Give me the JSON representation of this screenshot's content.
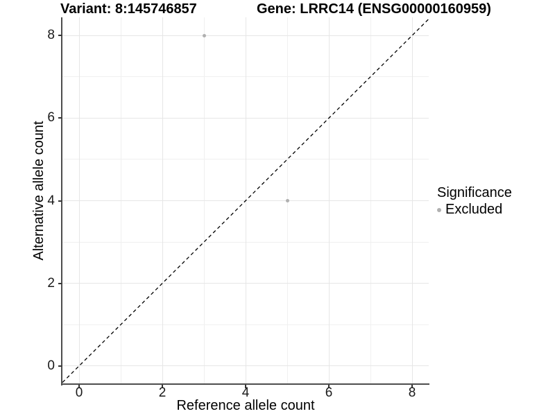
{
  "chart_data": {
    "type": "scatter",
    "title_left": "Variant: 8:145746857",
    "title_right": "Gene: LRRC14 (ENSG00000160959)",
    "xlabel": "Reference allele count",
    "ylabel": "Alternative allele count",
    "xlim": [
      -0.4,
      8.4
    ],
    "ylim": [
      -0.44,
      8.44
    ],
    "x_major_ticks": [
      0,
      2,
      4,
      6,
      8
    ],
    "y_major_ticks": [
      0,
      2,
      4,
      6,
      8
    ],
    "x_minor_gridlines": [
      1,
      3,
      5,
      7
    ],
    "y_minor_gridlines": [
      1,
      3,
      5,
      7
    ],
    "grid": "on",
    "identity_line": {
      "style": "dashed",
      "color": "#000000",
      "from": [
        -0.4,
        -0.4
      ],
      "to": [
        8.4,
        8.4
      ]
    },
    "series": [
      {
        "name": "Excluded",
        "color": "#b0b0b0",
        "marker": "circle",
        "points": [
          [
            3,
            8
          ],
          [
            5,
            4
          ]
        ]
      }
    ],
    "legend": {
      "title": "Significance",
      "position": "right",
      "entries": [
        {
          "label": "Excluded",
          "color": "#b0b0b0"
        }
      ]
    },
    "colors": {
      "grid_major": "#e6e6e6",
      "grid_minor": "#f0f0f0",
      "axis_line": "#4d4d4d",
      "tick": "#333333",
      "text": "#000000"
    }
  }
}
